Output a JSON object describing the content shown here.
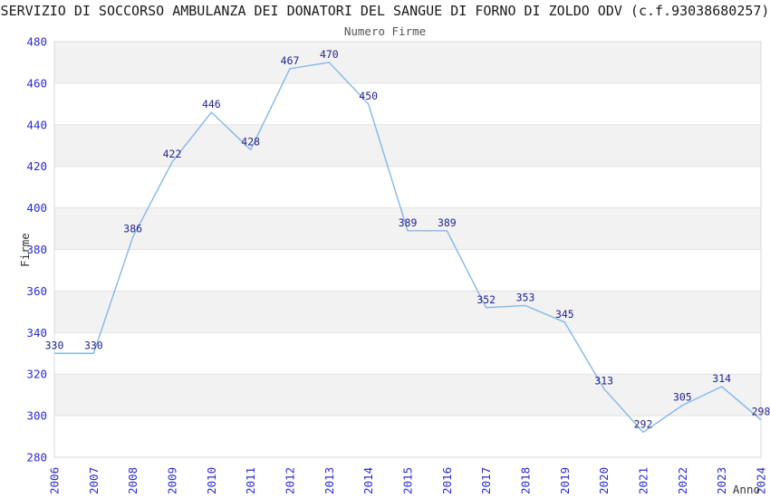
{
  "header": {
    "title": "SERVIZIO DI SOCCORSO AMBULANZA DEI DONATORI DEL SANGUE DI FORNO DI ZOLDO ODV (c.f.93038680257)",
    "subtitle": "Numero Firme"
  },
  "chart_data": {
    "type": "line",
    "title": "Numero Firme",
    "xlabel": "Anno",
    "ylabel": "Firme",
    "x": [
      2006,
      2007,
      2008,
      2009,
      2010,
      2011,
      2012,
      2013,
      2014,
      2015,
      2016,
      2017,
      2018,
      2019,
      2020,
      2021,
      2022,
      2023,
      2024
    ],
    "values": [
      330,
      330,
      386,
      422,
      446,
      428,
      467,
      470,
      450,
      389,
      389,
      352,
      353,
      345,
      313,
      292,
      305,
      314,
      298
    ],
    "ylim": [
      280,
      480
    ],
    "ytick_step": 20,
    "grid": "horizontal-bands-alternating",
    "legend": "none",
    "colors": {
      "line": "#85b7e9",
      "data_label": "#23238e",
      "tick_label": "#2b2bd0",
      "band_gray": "#f2f2f2",
      "band_light": "#ffffff",
      "gridline": "#e2e2e2",
      "border": "#d9d9d9",
      "axis_title": "#333333",
      "title": "#1a1a1a",
      "subtitle": "#555555"
    }
  }
}
